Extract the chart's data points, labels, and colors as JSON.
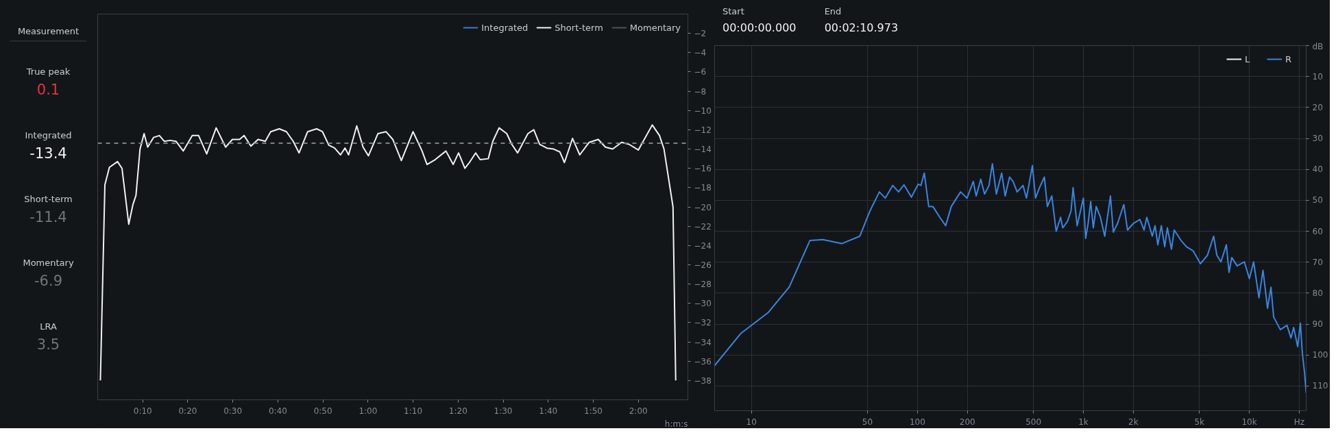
{
  "chart_data": [
    {
      "type": "other",
      "title": "Measurement",
      "annotations": [
        "True peak",
        "0.1",
        "Integrated",
        "-13.4",
        "Short-term",
        "-11.4",
        "Momentary",
        "-6.9",
        "LRA",
        "3.5"
      ]
    },
    {
      "type": "line",
      "xlabel": "h:m:s",
      "xlim": [
        0,
        131
      ],
      "ylim": [
        -40,
        0
      ],
      "xticks": [
        {
          "value": 10,
          "label": "0:10"
        },
        {
          "value": 20,
          "label": "0:20"
        },
        {
          "value": 30,
          "label": "0:30"
        },
        {
          "value": 40,
          "label": "0:40"
        },
        {
          "value": 50,
          "label": "0:50"
        },
        {
          "value": 60,
          "label": "1:00"
        },
        {
          "value": 70,
          "label": "1:10"
        },
        {
          "value": 80,
          "label": "1:20"
        },
        {
          "value": 90,
          "label": "1:30"
        },
        {
          "value": 100,
          "label": "1:40"
        },
        {
          "value": 110,
          "label": "1:50"
        },
        {
          "value": 120,
          "label": "2:00"
        }
      ],
      "yticks": [
        -2,
        -4,
        -6,
        -8,
        -10,
        -12,
        -14,
        -16,
        -18,
        -20,
        -22,
        -24,
        -26,
        -28,
        -30,
        -32,
        -34,
        -36,
        -38
      ],
      "grid": false,
      "legend": "top right",
      "line_style": "solid",
      "ref_lines": [
        {
          "axis": "y",
          "value": -13.4,
          "label": null,
          "color": "#7d838a",
          "line_style": "dashed"
        }
      ],
      "series": [
        {
          "name": "Integrated",
          "color": "#3a7bd5",
          "values": [
            null
          ]
        },
        {
          "name": "Short-term",
          "color": "#f2f2f2",
          "x": [
            0.6,
            1.6,
            2.6,
            4.4,
            5.4,
            6.9,
            7.8,
            8.5,
            9.4,
            10.3,
            11.1,
            12.4,
            13.7,
            14.8,
            16.1,
            17.4,
            19,
            21,
            22.4,
            24.2,
            26.3,
            28.4,
            29.9,
            31.5,
            32.5,
            34,
            35.6,
            37.2,
            38.4,
            40.3,
            41.9,
            43.4,
            44.7,
            46.6,
            48.6,
            49.9,
            51.3,
            52.6,
            53.9,
            54.9,
            55.7,
            57.5,
            58.9,
            60.1,
            62.2,
            64,
            65.5,
            67.4,
            70,
            72,
            73.1,
            74.9,
            77.3,
            78.9,
            80.1,
            81.5,
            82.5,
            83.9,
            84.9,
            86.7,
            87.7,
            89.1,
            90.8,
            91.9,
            93.2,
            95.5,
            96.8,
            98.1,
            99.7,
            101.2,
            102.6,
            103.6,
            105.4,
            107,
            109.1,
            111.1,
            112.7,
            114.3,
            116.3,
            117.9,
            120,
            123.1,
            124.7,
            125.7,
            127.7,
            128.3
          ],
          "values": [
            -38,
            -17.7,
            -15.9,
            -15.3,
            -16,
            -21.8,
            -19.8,
            -18.8,
            -14,
            -12.4,
            -13.8,
            -12.8,
            -12.6,
            -13.2,
            -13.1,
            -13.2,
            -14.2,
            -12.6,
            -12.6,
            -14.5,
            -11.8,
            -13.8,
            -13,
            -13,
            -12.6,
            -13.7,
            -13,
            -13.2,
            -12.2,
            -11.9,
            -12.2,
            -13.2,
            -14.4,
            -12.2,
            -11.9,
            -12.2,
            -13.6,
            -13.9,
            -14.6,
            -13.9,
            -14.6,
            -11.6,
            -13.8,
            -14.7,
            -12.4,
            -12.2,
            -13,
            -15.2,
            -12.2,
            -14.2,
            -15.6,
            -15.1,
            -14.2,
            -15.6,
            -14.4,
            -16,
            -15.4,
            -14.4,
            -15.1,
            -15,
            -13.2,
            -11.8,
            -12.4,
            -13.5,
            -14.4,
            -12.4,
            -12,
            -13.5,
            -13.9,
            -14,
            -14.3,
            -15.4,
            -12.9,
            -14.6,
            -13.3,
            -13,
            -13.8,
            -14,
            -13.3,
            -13.5,
            -14.1,
            -11.5,
            -12.6,
            -14,
            -20,
            -38
          ]
        },
        {
          "name": "Momentary",
          "color": "#4a5058",
          "values": [
            null
          ]
        }
      ]
    },
    {
      "type": "line",
      "log": "x",
      "xlim": [
        6,
        22000
      ],
      "ylim": [
        118,
        0
      ],
      "xticks": [
        10,
        50,
        100,
        200,
        500,
        {
          "value": 1000,
          "label": "1k"
        },
        {
          "value": 2000,
          "label": "2k"
        },
        {
          "value": 5000,
          "label": "5k"
        },
        {
          "value": 10000,
          "label": "10k"
        },
        {
          "value": 20000,
          "label": "Hz"
        }
      ],
      "yticks": [
        {
          "value": 0,
          "label": "dB"
        },
        10,
        20,
        30,
        40,
        50,
        60,
        70,
        80,
        90,
        100,
        110
      ],
      "grid": true,
      "legend": "top right",
      "line_style": "solid",
      "annotations": [
        "Start",
        "00:00:00.000",
        "End",
        "00:02:10.973"
      ],
      "series": [
        {
          "name": "L",
          "color": "#f2f2f2",
          "values": [
            null
          ]
        },
        {
          "name": "R",
          "color": "#3a85e0",
          "x": [
            6,
            8.6,
            12.6,
            16.9,
            22.5,
            27,
            35,
            45,
            51.8,
            59,
            64,
            71,
            77,
            83,
            92,
            101,
            105,
            110,
            117,
            124,
            136,
            148,
            160,
            182,
            199,
            217,
            226,
            241,
            254,
            270,
            283,
            299,
            322,
            338,
            359,
            377,
            399,
            433,
            454,
            493,
            515,
            544,
            582,
            607,
            645,
            686,
            729,
            751,
            802,
            843,
            867,
            917,
            1000,
            1032,
            1068,
            1107,
            1148,
            1195,
            1267,
            1345,
            1456,
            1515,
            1606,
            1753,
            1845,
            2000,
            2191,
            2320,
            2410,
            2602,
            2703,
            2810,
            2950,
            3090,
            3206,
            3395,
            3528,
            3878,
            4180,
            4596,
            5075,
            5586,
            6095,
            6374,
            6743,
            7270,
            7546,
            7834,
            8446,
            9336,
            10000,
            10614,
            11426,
            12083,
            12869,
            13500,
            14010,
            15372,
            16856,
            17819,
            18490,
            19554,
            20301,
            20855,
            21488,
            22000
          ],
          "values": [
            103.4,
            93.1,
            86.3,
            78,
            63,
            62.7,
            64,
            61.6,
            53.4,
            47.3,
            49.3,
            45.2,
            47.3,
            45,
            49,
            44.8,
            45.2,
            41.2,
            52,
            52,
            55.4,
            58.2,
            52,
            47.3,
            49.3,
            43.9,
            48.6,
            43.2,
            48,
            45.2,
            38.2,
            48,
            41.2,
            48.6,
            42.5,
            43.9,
            47.3,
            45.2,
            49.3,
            38.8,
            49.3,
            45.9,
            42.5,
            52,
            48.6,
            60,
            55.5,
            58.9,
            56.8,
            53.4,
            45.9,
            58.2,
            49.3,
            62.3,
            57.5,
            50.4,
            58.9,
            52,
            55.5,
            61.6,
            48.6,
            60.3,
            57.5,
            51.4,
            59.6,
            57.5,
            56.2,
            59.6,
            55.5,
            61.6,
            58.2,
            64.4,
            58.2,
            65,
            58.9,
            65.8,
            59.6,
            63,
            65,
            66.4,
            70.5,
            67.8,
            61.6,
            67.8,
            69.9,
            64.4,
            73.3,
            68.5,
            71.2,
            69.9,
            75.3,
            69.9,
            81.5,
            72.6,
            84.9,
            78.1,
            87.7,
            91.8,
            90.4,
            94.5,
            91.1,
            97.3,
            89.7,
            99.3,
            105.5,
            112.3
          ]
        }
      ]
    }
  ]
}
